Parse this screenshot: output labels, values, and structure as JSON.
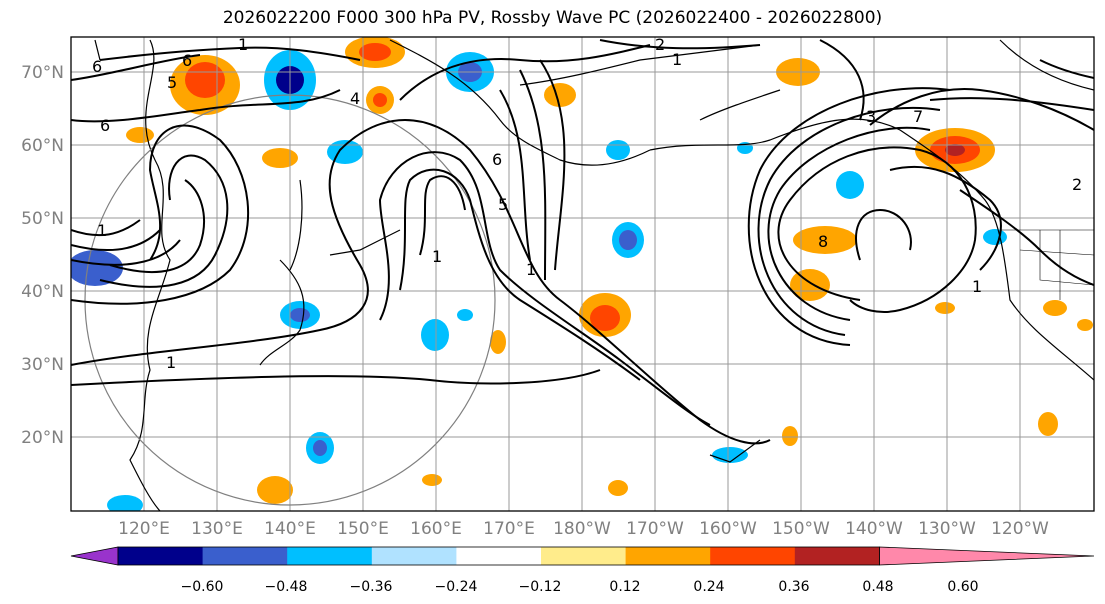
{
  "title": "2026022200 F000 300 hPa PV, Rossby Wave PC (2026022400 - 2026022800)",
  "lat_labels": [
    "70°N",
    "60°N",
    "50°N",
    "40°N",
    "30°N",
    "20°N"
  ],
  "lon_labels": [
    "120°E",
    "130°E",
    "140°E",
    "150°E",
    "160°E",
    "170°E",
    "180°W",
    "170°W",
    "160°W",
    "150°W",
    "140°W",
    "130°W",
    "120°W"
  ],
  "colorbar": {
    "colors": [
      "#9933cc",
      "#00008b",
      "#3a5fcd",
      "#00bfff",
      "#b0e2ff",
      "#ffffff",
      "#ffec8b",
      "#ffa500",
      "#ff4500",
      "#b22222",
      "#ff88aa"
    ],
    "tick_labels": [
      "−0.60",
      "−0.48",
      "−0.36",
      "−0.24",
      "−0.12",
      "0.12",
      "0.24",
      "0.36",
      "0.48",
      "0.60"
    ]
  },
  "contour_labels": [
    "1",
    "2",
    "1",
    "6",
    "5",
    "4",
    "6",
    "5",
    "6",
    "1",
    "1",
    "1",
    "1",
    "3",
    "7",
    "8",
    "1",
    "6",
    "2"
  ]
}
